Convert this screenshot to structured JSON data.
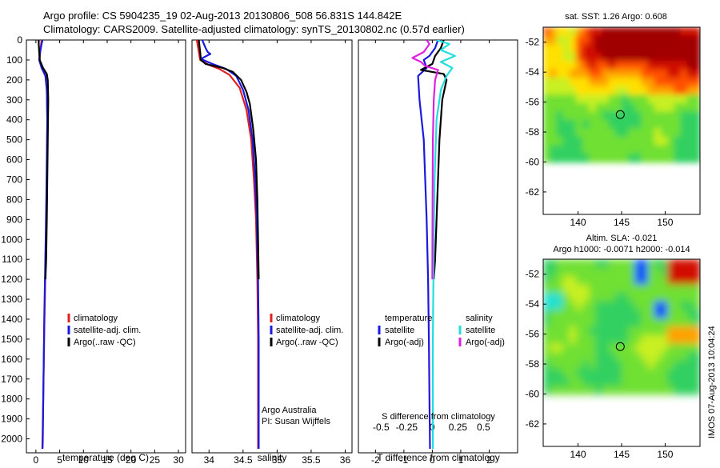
{
  "header": {
    "line1": "Argo profile: CS 5904235_19 02-Aug-2013 20130806_508 56.831S 144.842E",
    "line2": "Climatology: CARS2009. Satellite-adjusted climatology: synTS_20130802.nc (0.57d earlier)"
  },
  "side_stamp": "IMOS 07-Aug-2013 10:04:24",
  "colors": {
    "climatology": "#e02020",
    "satellite": "#1a1adf",
    "argo": "#000000",
    "cyan": "#22dddd",
    "magenta": "#e020e0"
  },
  "chart_data": [
    {
      "type": "line",
      "id": "temperature",
      "xlabel": "temperature (deg C)",
      "xlim": [
        -2,
        31.5
      ],
      "xticks": [
        0,
        5,
        10,
        15,
        20,
        25,
        30
      ],
      "ylim": [
        0,
        2070
      ],
      "yticks": [
        0,
        100,
        200,
        300,
        400,
        500,
        600,
        700,
        800,
        900,
        1000,
        1100,
        1200,
        1300,
        1400,
        1500,
        1600,
        1700,
        1800,
        1900,
        2000
      ],
      "legend": [
        "climatology",
        "satellite-adj. clim.",
        "Argo(..raw -QC)"
      ],
      "series": [
        {
          "name": "climatology",
          "color": "#e02020",
          "points": [
            [
              1.2,
              0
            ],
            [
              1.1,
              20
            ],
            [
              0.9,
              60
            ],
            [
              0.8,
              100
            ],
            [
              1.3,
              140
            ],
            [
              2.0,
              180
            ],
            [
              2.3,
              250
            ],
            [
              2.4,
              400
            ],
            [
              2.35,
              600
            ],
            [
              2.25,
              800
            ],
            [
              2.1,
              1000
            ],
            [
              2.0,
              1150
            ],
            [
              1.8,
              1400
            ],
            [
              1.6,
              1700
            ],
            [
              1.4,
              2000
            ],
            [
              1.35,
              2050
            ]
          ]
        },
        {
          "name": "satellite-adj. clim.",
          "color": "#1a1adf",
          "points": [
            [
              1.4,
              0
            ],
            [
              1.2,
              20
            ],
            [
              0.9,
              60
            ],
            [
              0.7,
              100
            ],
            [
              1.2,
              140
            ],
            [
              2.0,
              180
            ],
            [
              2.3,
              250
            ],
            [
              2.4,
              400
            ],
            [
              2.3,
              600
            ],
            [
              2.2,
              800
            ],
            [
              2.05,
              1000
            ],
            [
              1.9,
              1200
            ],
            [
              1.75,
              1400
            ],
            [
              1.6,
              1700
            ],
            [
              1.45,
              2000
            ],
            [
              1.4,
              2050
            ]
          ]
        },
        {
          "name": "Argo(..raw -QC)",
          "color": "#000000",
          "points": [
            [
              0.6,
              0
            ],
            [
              0.6,
              20
            ],
            [
              0.7,
              60
            ],
            [
              0.8,
              100
            ],
            [
              1.5,
              140
            ],
            [
              2.3,
              170
            ],
            [
              2.5,
              200
            ],
            [
              2.6,
              300
            ],
            [
              2.5,
              500
            ],
            [
              2.4,
              700
            ],
            [
              2.3,
              900
            ],
            [
              2.15,
              1100
            ],
            [
              2.0,
              1200
            ]
          ]
        }
      ]
    },
    {
      "type": "line",
      "id": "salinity",
      "xlabel": "salinity",
      "xlim": [
        33.75,
        36.1
      ],
      "xticks": [
        34,
        34.5,
        35,
        35.5,
        36
      ],
      "ylim": [
        0,
        2070
      ],
      "legend": [
        "climatology",
        "satellite-adj. clim.",
        "Argo(..raw -QC)"
      ],
      "annotation": [
        "Argo Australia",
        "PI: Susan Wijffels"
      ],
      "series": [
        {
          "name": "climatology",
          "color": "#e02020",
          "points": [
            [
              33.82,
              0
            ],
            [
              33.85,
              60
            ],
            [
              33.87,
              100
            ],
            [
              34.0,
              125
            ],
            [
              34.15,
              145
            ],
            [
              34.3,
              175
            ],
            [
              34.45,
              240
            ],
            [
              34.55,
              350
            ],
            [
              34.62,
              500
            ],
            [
              34.66,
              700
            ],
            [
              34.69,
              900
            ],
            [
              34.71,
              1200
            ],
            [
              34.72,
              1500
            ],
            [
              34.72,
              1800
            ],
            [
              34.72,
              2050
            ]
          ]
        },
        {
          "name": "satellite-adj. clim.",
          "color": "#1a1adf",
          "points": [
            [
              33.9,
              0
            ],
            [
              33.95,
              40
            ],
            [
              33.98,
              60
            ],
            [
              34.02,
              70
            ],
            [
              33.88,
              95
            ],
            [
              34.05,
              120
            ],
            [
              34.25,
              145
            ],
            [
              34.4,
              180
            ],
            [
              34.5,
              250
            ],
            [
              34.58,
              350
            ],
            [
              34.64,
              500
            ],
            [
              34.68,
              700
            ],
            [
              34.7,
              900
            ],
            [
              34.72,
              1200
            ],
            [
              34.73,
              1500
            ],
            [
              34.73,
              1800
            ],
            [
              34.73,
              2050
            ]
          ]
        },
        {
          "name": "Argo(..raw -QC)",
          "color": "#000000",
          "points": [
            [
              33.85,
              0
            ],
            [
              33.87,
              60
            ],
            [
              33.88,
              100
            ],
            [
              33.95,
              120
            ],
            [
              34.2,
              140
            ],
            [
              34.35,
              160
            ],
            [
              34.47,
              200
            ],
            [
              34.55,
              260
            ],
            [
              34.6,
              320
            ],
            [
              34.65,
              450
            ],
            [
              34.69,
              600
            ],
            [
              34.71,
              800
            ],
            [
              34.72,
              1000
            ],
            [
              34.73,
              1200
            ]
          ]
        }
      ]
    },
    {
      "type": "line",
      "id": "difference",
      "xlabel": "T difference from climatology",
      "xlabel2": "S difference from climatology",
      "xlim": [
        -2.6,
        3.0
      ],
      "xticks": [
        -2,
        -1,
        0,
        1,
        2
      ],
      "x2ticks": [
        -0.5,
        -0.25,
        0,
        0.25,
        0.5
      ],
      "x2tick_labels": [
        "-0.5",
        "-0.25",
        "0",
        "0.25",
        "0.5"
      ],
      "ylim": [
        0,
        2070
      ],
      "legend_temperature": [
        "temperature",
        "satellite",
        "Argo(-adj)"
      ],
      "legend_salinity": [
        "salinity",
        "satellite",
        "Argo(-adj)"
      ],
      "series": [
        {
          "name": "temperature satellite",
          "color": "#1a1adf",
          "points": [
            [
              0.2,
              0
            ],
            [
              0.1,
              40
            ],
            [
              -0.1,
              80
            ],
            [
              -0.3,
              100
            ],
            [
              -0.2,
              140
            ],
            [
              -0.5,
              180
            ],
            [
              -0.45,
              300
            ],
            [
              -0.3,
              500
            ],
            [
              -0.25,
              700
            ],
            [
              -0.2,
              900
            ],
            [
              -0.15,
              1200
            ],
            [
              -0.12,
              1500
            ],
            [
              -0.1,
              1800
            ],
            [
              -0.08,
              2050
            ]
          ]
        },
        {
          "name": "temperature Argo(-adj)",
          "color": "#000000",
          "points": [
            [
              0.4,
              0
            ],
            [
              0.3,
              40
            ],
            [
              0.1,
              80
            ],
            [
              0.0,
              120
            ],
            [
              -0.4,
              150
            ],
            [
              0.4,
              170
            ],
            [
              0.5,
              200
            ],
            [
              0.35,
              300
            ],
            [
              0.25,
              500
            ],
            [
              0.2,
              700
            ],
            [
              0.15,
              900
            ],
            [
              0.1,
              1100
            ],
            [
              0.05,
              1200
            ]
          ]
        },
        {
          "name": "salinity satellite",
          "color": "#22dddd",
          "points": [
            [
              0.15,
              0
            ],
            [
              0.6,
              20
            ],
            [
              0.3,
              50
            ],
            [
              0.8,
              80
            ],
            [
              0.3,
              110
            ],
            [
              0.7,
              140
            ],
            [
              0.5,
              180
            ],
            [
              0.3,
              250
            ],
            [
              0.15,
              400
            ],
            [
              0.08,
              700
            ],
            [
              0.05,
              1000
            ],
            [
              0.02,
              1500
            ],
            [
              0.02,
              2050
            ]
          ]
        },
        {
          "name": "salinity Argo(-adj)",
          "color": "#e020e0",
          "points": [
            [
              -0.2,
              0
            ],
            [
              -0.1,
              20
            ],
            [
              -0.3,
              60
            ],
            [
              -0.7,
              90
            ],
            [
              -0.4,
              110
            ],
            [
              -0.25,
              130
            ],
            [
              0.2,
              150
            ],
            [
              0.1,
              200
            ],
            [
              0.05,
              300
            ],
            [
              0.02,
              500
            ],
            [
              0.01,
              800
            ],
            [
              0.0,
              1200
            ]
          ]
        }
      ]
    },
    {
      "type": "heatmap",
      "id": "sst_map",
      "title": "sat. SST: 1.26 Argo: 0.608",
      "xlim": [
        136,
        154
      ],
      "ylim": [
        -63.5,
        -51
      ],
      "xticks": [
        140,
        145,
        150
      ],
      "yticks": [
        -52,
        -54,
        -56,
        -58,
        -60,
        -62
      ],
      "data_extent_lat": [
        -60,
        -51
      ],
      "argo_position": [
        144.842,
        -56.831
      ]
    },
    {
      "type": "heatmap",
      "id": "sla_map",
      "title": "Altim. SLA: -0.021",
      "subtitle": "Argo h1000: -0.0071 h2000: -0.014",
      "xlim": [
        136,
        154
      ],
      "ylim": [
        -63.5,
        -51
      ],
      "xticks": [
        140,
        145,
        150
      ],
      "yticks": [
        -52,
        -54,
        -56,
        -58,
        -60,
        -62
      ],
      "data_extent_lat": [
        -60,
        -51
      ],
      "argo_position": [
        144.842,
        -56.831
      ]
    }
  ]
}
